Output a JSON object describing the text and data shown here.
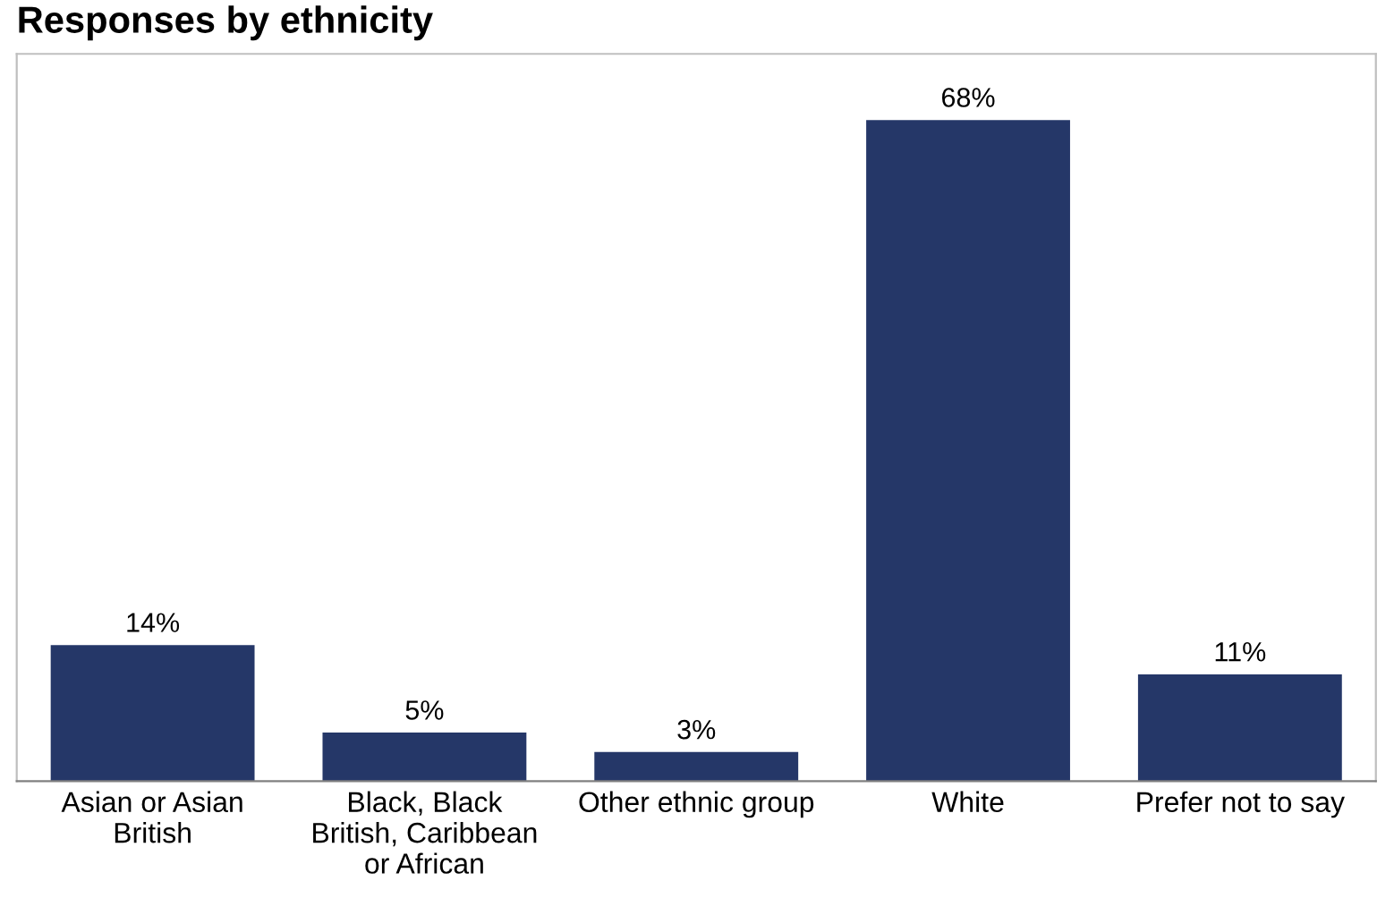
{
  "chart_data": {
    "type": "bar",
    "title": "Responses by ethnicity",
    "categories": [
      "Asian or Asian British",
      "Black, Black British, Caribbean or African",
      "Other ethnic group",
      "White",
      "Prefer not to say"
    ],
    "values": [
      14,
      5,
      3,
      68,
      11
    ],
    "value_labels": [
      "14%",
      "5%",
      "3%",
      "68%",
      "11%"
    ],
    "color": "#253768",
    "grid": false,
    "legend": false
  }
}
